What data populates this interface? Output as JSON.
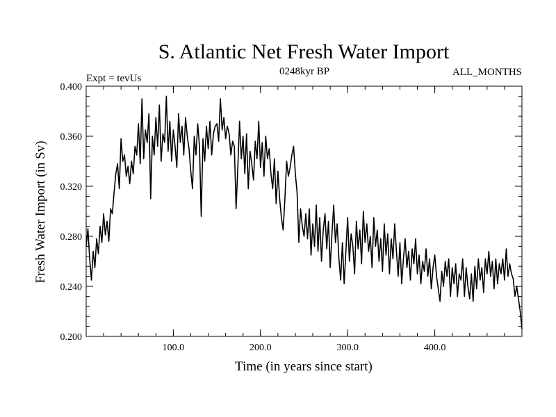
{
  "chart_data": {
    "type": "line",
    "title": "S. Atlantic Net Fresh Water Import",
    "subtitle": "0248kyr BP",
    "left_note": "Expt = tevUs",
    "right_note": "ALL_MONTHS",
    "xlabel": "Time (in years since start)",
    "ylabel": "Fresh Water Import (in Sv)",
    "xlim": [
      0,
      500
    ],
    "ylim": [
      0.2,
      0.4
    ],
    "xticks": [
      100,
      200,
      300,
      400
    ],
    "xtick_labels": [
      "100.0",
      "200.0",
      "300.0",
      "400.0"
    ],
    "yticks": [
      0.2,
      0.24,
      0.28,
      0.32,
      0.36,
      0.4
    ],
    "ytick_labels": [
      "0.200",
      "0.240",
      "0.280",
      "0.320",
      "0.360",
      "0.400"
    ],
    "grid": false,
    "line_color": "#000000",
    "series": [
      {
        "x": [
          0,
          2,
          4,
          6,
          8,
          10,
          12,
          14,
          16,
          18,
          20,
          22,
          24,
          26,
          28,
          30,
          32,
          34,
          36,
          38,
          40,
          42,
          44,
          46,
          48,
          50,
          52,
          54,
          56,
          58,
          60,
          62,
          64,
          66,
          68,
          70,
          72,
          74,
          76,
          78,
          80,
          82,
          84,
          86,
          88,
          90,
          92,
          94,
          96,
          98,
          100,
          102,
          104,
          106,
          108,
          110,
          112,
          114,
          116,
          118,
          120,
          122,
          124,
          126,
          128,
          130,
          132,
          134,
          136,
          138,
          140,
          142,
          144,
          146,
          148,
          150,
          152,
          154,
          156,
          158,
          160,
          162,
          164,
          166,
          168,
          170,
          172,
          174,
          176,
          178,
          180,
          182,
          184,
          186,
          188,
          190,
          192,
          194,
          196,
          198,
          200,
          202,
          204,
          206,
          208,
          210,
          212,
          214,
          216,
          218,
          220,
          222,
          224,
          226,
          228,
          230,
          232,
          234,
          236,
          238,
          240,
          242,
          244,
          246,
          248,
          250,
          252,
          254,
          256,
          258,
          260,
          262,
          264,
          266,
          268,
          270,
          272,
          274,
          276,
          278,
          280,
          282,
          284,
          286,
          288,
          290,
          292,
          294,
          296,
          298,
          300,
          302,
          304,
          306,
          308,
          310,
          312,
          314,
          316,
          318,
          320,
          322,
          324,
          326,
          328,
          330,
          332,
          334,
          336,
          338,
          340,
          342,
          344,
          346,
          348,
          350,
          352,
          354,
          356,
          358,
          360,
          362,
          364,
          366,
          368,
          370,
          372,
          374,
          376,
          378,
          380,
          382,
          384,
          386,
          388,
          390,
          392,
          394,
          396,
          398,
          400,
          402,
          404,
          406,
          408,
          410,
          412,
          414,
          416,
          418,
          420,
          422,
          424,
          426,
          428,
          430,
          432,
          434,
          436,
          438,
          440,
          442,
          444,
          446,
          448,
          450,
          452,
          454,
          456,
          458,
          460,
          462,
          464,
          466,
          468,
          470,
          472,
          474,
          476,
          478,
          480,
          482,
          484,
          486,
          488,
          490,
          492,
          494,
          496,
          498,
          500
        ],
        "values": [
          0.272,
          0.286,
          0.262,
          0.245,
          0.268,
          0.255,
          0.278,
          0.266,
          0.288,
          0.275,
          0.298,
          0.281,
          0.292,
          0.276,
          0.302,
          0.298,
          0.315,
          0.33,
          0.338,
          0.318,
          0.358,
          0.34,
          0.345,
          0.328,
          0.336,
          0.322,
          0.34,
          0.33,
          0.352,
          0.345,
          0.37,
          0.338,
          0.39,
          0.342,
          0.365,
          0.355,
          0.378,
          0.31,
          0.36,
          0.345,
          0.375,
          0.352,
          0.385,
          0.34,
          0.362,
          0.355,
          0.392,
          0.348,
          0.372,
          0.34,
          0.365,
          0.352,
          0.335,
          0.378,
          0.355,
          0.368,
          0.345,
          0.375,
          0.36,
          0.35,
          0.332,
          0.318,
          0.36,
          0.345,
          0.37,
          0.352,
          0.296,
          0.358,
          0.34,
          0.368,
          0.35,
          0.372,
          0.345,
          0.362,
          0.368,
          0.37,
          0.356,
          0.39,
          0.365,
          0.375,
          0.358,
          0.368,
          0.362,
          0.345,
          0.356,
          0.352,
          0.302,
          0.335,
          0.372,
          0.342,
          0.36,
          0.33,
          0.362,
          0.318,
          0.348,
          0.338,
          0.325,
          0.356,
          0.342,
          0.372,
          0.335,
          0.355,
          0.328,
          0.36,
          0.342,
          0.35,
          0.33,
          0.318,
          0.342,
          0.306,
          0.332,
          0.31,
          0.295,
          0.285,
          0.31,
          0.34,
          0.328,
          0.335,
          0.345,
          0.352,
          0.33,
          0.315,
          0.275,
          0.302,
          0.288,
          0.28,
          0.298,
          0.278,
          0.302,
          0.265,
          0.29,
          0.272,
          0.305,
          0.268,
          0.295,
          0.26,
          0.285,
          0.298,
          0.27,
          0.292,
          0.255,
          0.282,
          0.305,
          0.275,
          0.29,
          0.262,
          0.245,
          0.275,
          0.242,
          0.268,
          0.295,
          0.26,
          0.282,
          0.272,
          0.25,
          0.292,
          0.27,
          0.285,
          0.258,
          0.3,
          0.275,
          0.29,
          0.268,
          0.28,
          0.255,
          0.295,
          0.272,
          0.285,
          0.26,
          0.278,
          0.252,
          0.29,
          0.265,
          0.282,
          0.25,
          0.278,
          0.262,
          0.29,
          0.268,
          0.248,
          0.275,
          0.242,
          0.262,
          0.278,
          0.255,
          0.268,
          0.245,
          0.27,
          0.258,
          0.278,
          0.25,
          0.265,
          0.242,
          0.26,
          0.252,
          0.27,
          0.248,
          0.262,
          0.238,
          0.255,
          0.265,
          0.248,
          0.238,
          0.228,
          0.252,
          0.24,
          0.26,
          0.248,
          0.262,
          0.232,
          0.255,
          0.242,
          0.258,
          0.232,
          0.25,
          0.245,
          0.262,
          0.232,
          0.255,
          0.24,
          0.23,
          0.25,
          0.228,
          0.256,
          0.238,
          0.262,
          0.245,
          0.255,
          0.235,
          0.262,
          0.25,
          0.268,
          0.248,
          0.26,
          0.238,
          0.262,
          0.242,
          0.258,
          0.25,
          0.262,
          0.245,
          0.27,
          0.248,
          0.258,
          0.25,
          0.246,
          0.232,
          0.24,
          0.23,
          0.22,
          0.206
        ]
      }
    ]
  }
}
